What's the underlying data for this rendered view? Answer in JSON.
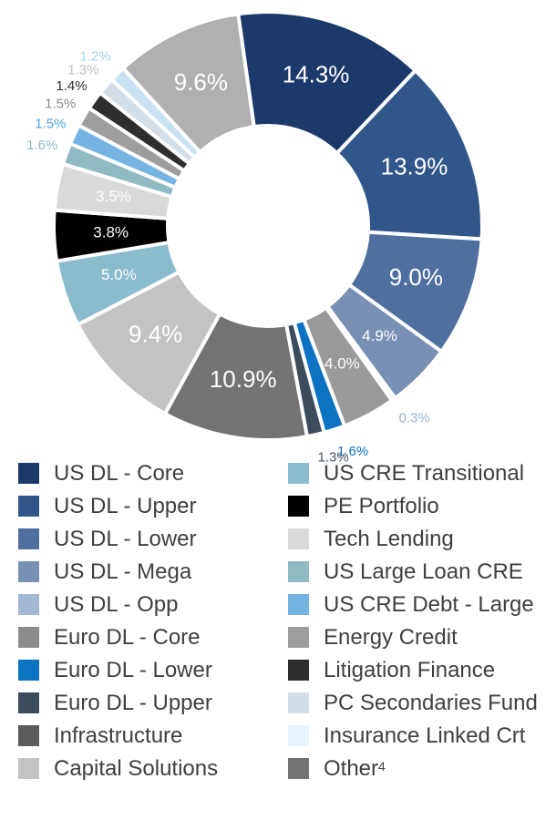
{
  "chart_data": {
    "type": "pie",
    "variant": "donut",
    "title": "",
    "slices": [
      {
        "label": "US DL - Core",
        "value": 14.3,
        "display": "14.3%",
        "color": "#1b3a6b",
        "label_color": "#ffffff"
      },
      {
        "label": "US DL - Upper",
        "value": 13.9,
        "display": "13.9%",
        "color": "#31578a",
        "label_color": "#ffffff"
      },
      {
        "label": "US DL - Lower",
        "value": 9.0,
        "display": "9.0%",
        "color": "#4f6f9f",
        "label_color": "#ffffff"
      },
      {
        "label": "US DL - Mega",
        "value": 4.9,
        "display": "4.9%",
        "color": "#7790b4",
        "label_color": "#ffffff"
      },
      {
        "label": "US DL - Opp",
        "value": 0.3,
        "display": "0.3%",
        "color": "#a2b8d3",
        "label_color": "#9bb3cf"
      },
      {
        "label": "Euro DL - Core",
        "value": 4.0,
        "display": "4.0%",
        "color": "#9a9a9a",
        "label_color": "#ffffff"
      },
      {
        "label": "Euro DL - Lower",
        "value": 1.6,
        "display": "1.6%",
        "color": "#0c73c2",
        "label_color": "#0c73c2"
      },
      {
        "label": "Euro DL - Upper",
        "value": 1.3,
        "display": "1.3%",
        "color": "#3d4c5c",
        "label_color": "#4a5663"
      },
      {
        "label": "Infrastructure",
        "value": 0.0,
        "display": "",
        "color": "#5b5b5b",
        "label_color": "#5b5b5b"
      },
      {
        "label": "Other",
        "value": 10.9,
        "display": "10.9%",
        "color": "#737373",
        "label_color": "#ffffff"
      },
      {
        "label": "Capital Solutions",
        "value": 9.4,
        "display": "9.4%",
        "color": "#c3c3c3",
        "label_color": "#ffffff"
      },
      {
        "label": "US CRE Transitional",
        "value": 5.0,
        "display": "5.0%",
        "color": "#8bbccd",
        "label_color": "#ffffff"
      },
      {
        "label": "PE Portfolio",
        "value": 3.8,
        "display": "3.8%",
        "color": "#000000",
        "label_color": "#ffffff"
      },
      {
        "label": "Tech Lending",
        "value": 3.5,
        "display": "3.5%",
        "color": "#d9d9d9",
        "label_color": "#ffffff"
      },
      {
        "label": "US Large Loan CRE",
        "value": 1.6,
        "display": "1.6%",
        "color": "#8fbac2",
        "label_color": "#8fbac2"
      },
      {
        "label": "US CRE Debt - Large",
        "value": 1.5,
        "display": "1.5%",
        "color": "#74b3e2",
        "label_color": "#4ea3dc"
      },
      {
        "label": "Energy Credit",
        "value": 1.5,
        "display": "1.5%",
        "color": "#9d9d9d",
        "label_color": "#8a8a8a"
      },
      {
        "label": "Litigation Finance",
        "value": 1.4,
        "display": "1.4%",
        "color": "#2e2e2e",
        "label_color": "#2e2e2e"
      },
      {
        "label": "PC Secondaries Fund",
        "value": 1.3,
        "display": "1.3%",
        "color": "#d4dee6",
        "label_color": "#c0c0c0"
      },
      {
        "label": "Insurance Linked Crt",
        "value": 1.2,
        "display": "1.2%",
        "color": "#c8e2f3",
        "label_color": "#a9d0ea"
      },
      {
        "label": "Capital Solutions",
        "value": 9.6,
        "display": "9.6%",
        "color": "#b0b0b0",
        "label_color": "#ffffff"
      }
    ],
    "legend": {
      "placement": "bottom",
      "columns": [
        [
          {
            "label": "US DL - Core",
            "color": "#1b3a6b"
          },
          {
            "label": "US DL - Upper",
            "color": "#31578a"
          },
          {
            "label": "US DL - Lower",
            "color": "#4f6f9f"
          },
          {
            "label": "US DL - Mega",
            "color": "#7790b4"
          },
          {
            "label": "US DL - Opp",
            "color": "#a2b8d3"
          },
          {
            "label": "Euro DL - Core",
            "color": "#8c8c8c"
          },
          {
            "label": "Euro DL - Lower",
            "color": "#0c73c2"
          },
          {
            "label": "Euro DL - Upper",
            "color": "#3d4c5c"
          },
          {
            "label": "Infrastructure",
            "color": "#5b5b5b"
          },
          {
            "label": "Capital Solutions",
            "color": "#c3c3c3"
          }
        ],
        [
          {
            "label": "US CRE Transitional",
            "color": "#8bbccd"
          },
          {
            "label": "PE Portfolio",
            "color": "#000000"
          },
          {
            "label": "Tech Lending",
            "color": "#d9d9d9"
          },
          {
            "label": "US Large Loan CRE",
            "color": "#8fbac2"
          },
          {
            "label": "US CRE Debt - Large",
            "color": "#74b3e2"
          },
          {
            "label": "Energy Credit",
            "color": "#9d9d9d"
          },
          {
            "label": "Litigation Finance",
            "color": "#2e2e2e"
          },
          {
            "label": "PC Secondaries Fund",
            "color": "#d4dee6"
          },
          {
            "label": "Insurance Linked Crt",
            "color": "#e8f3fb"
          },
          {
            "label": "Other",
            "sup": "4",
            "color": "#737373"
          }
        ]
      ]
    }
  }
}
